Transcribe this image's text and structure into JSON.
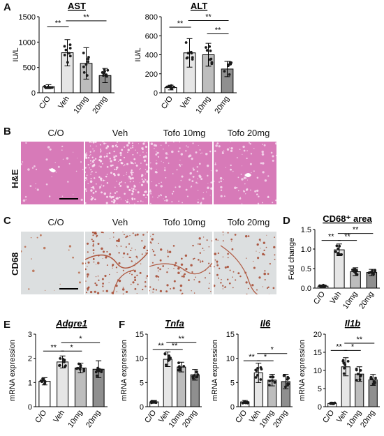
{
  "panels": {
    "A": "A",
    "B": "B",
    "C": "C",
    "D": "D",
    "E": "E",
    "F": "F"
  },
  "micrographs": {
    "col_labels": [
      "C/O",
      "Veh",
      "Tofo 10mg",
      "Tofo 20mg"
    ],
    "he_row_label": "H&E",
    "cd68_row_label": "CD68",
    "he_color": "#d77ab8",
    "cd68_color": "#dcdfe0"
  },
  "colors": {
    "bar_co": "#ffffff",
    "bar_veh": "#e6e6e6",
    "bar_10mg": "#bdbdbd",
    "bar_20mg": "#8f8f8f"
  },
  "chart_data": [
    {
      "id": "ast",
      "type": "bar",
      "title": "AST",
      "title_underline": true,
      "title_italic": false,
      "ylabel": "IU/L",
      "ylim": [
        0,
        1500
      ],
      "yticks": [
        0,
        500,
        1000,
        1500
      ],
      "categories": [
        "C/O",
        "Veh",
        "10mg",
        "20mg"
      ],
      "values": [
        120,
        790,
        580,
        340
      ],
      "errors": [
        40,
        260,
        310,
        140
      ],
      "brackets": [
        {
          "from": 0,
          "to": 1,
          "label": "**",
          "y": 1300
        },
        {
          "from": 1,
          "to": 3,
          "label": "**",
          "y": 1420
        }
      ]
    },
    {
      "id": "alt",
      "type": "bar",
      "title": "ALT",
      "title_underline": true,
      "title_italic": false,
      "ylabel": "IU/L",
      "ylim": [
        0,
        800
      ],
      "yticks": [
        0,
        200,
        400,
        600,
        800
      ],
      "categories": [
        "C/O",
        "Veh",
        "10mg",
        "20mg"
      ],
      "values": [
        55,
        420,
        400,
        250
      ],
      "errors": [
        25,
        150,
        120,
        80
      ],
      "brackets": [
        {
          "from": 0,
          "to": 1,
          "label": "**",
          "y": 690
        },
        {
          "from": 2,
          "to": 3,
          "label": "**",
          "y": 620
        },
        {
          "from": 1,
          "to": 3,
          "label": "**",
          "y": 760
        }
      ]
    },
    {
      "id": "cd68",
      "type": "bar",
      "title": "CD68⁺ area",
      "title_underline": true,
      "title_italic": false,
      "ylabel": "Fold change",
      "ylim": [
        0,
        1.5
      ],
      "yticks": [
        0.0,
        0.5,
        1.0,
        1.5
      ],
      "categories": [
        "C/O",
        "Veh",
        "10mg",
        "20mg"
      ],
      "values": [
        0.05,
        0.98,
        0.42,
        0.4
      ],
      "errors": [
        0.03,
        0.15,
        0.1,
        0.08
      ],
      "brackets": [
        {
          "from": 0,
          "to": 1,
          "label": "**",
          "y": 1.22
        },
        {
          "from": 1,
          "to": 2,
          "label": "**",
          "y": 1.22
        },
        {
          "from": 1,
          "to": 3,
          "label": "**",
          "y": 1.4
        }
      ]
    },
    {
      "id": "adgre1",
      "type": "bar",
      "title": "Adgre1",
      "title_underline": true,
      "title_italic": true,
      "ylabel": "mRNA expression",
      "ylim": [
        0,
        3
      ],
      "yticks": [
        0,
        1,
        2,
        3
      ],
      "categories": [
        "C/O",
        "Veh",
        "10mg",
        "20mg"
      ],
      "values": [
        1.05,
        1.85,
        1.6,
        1.55
      ],
      "errors": [
        0.15,
        0.25,
        0.2,
        0.35
      ],
      "brackets": [
        {
          "from": 0,
          "to": 1,
          "label": "**",
          "y": 2.3
        },
        {
          "from": 1,
          "to": 2,
          "label": "*",
          "y": 2.3
        },
        {
          "from": 1,
          "to": 3,
          "label": "*",
          "y": 2.65
        }
      ]
    },
    {
      "id": "tnfa",
      "type": "bar",
      "title": "Tnfa",
      "title_underline": true,
      "title_italic": true,
      "ylabel": "mRNA expression",
      "ylim": [
        0,
        15
      ],
      "yticks": [
        0,
        5,
        10,
        15
      ],
      "categories": [
        "C/O",
        "Veh",
        "10mg",
        "20mg"
      ],
      "values": [
        1.0,
        9.8,
        8.2,
        6.6
      ],
      "errors": [
        0.3,
        1.5,
        1.0,
        1.1
      ],
      "brackets": [
        {
          "from": 0,
          "to": 1,
          "label": "**",
          "y": 11.8
        },
        {
          "from": 1,
          "to": 2,
          "label": "**",
          "y": 11.8
        },
        {
          "from": 1,
          "to": 3,
          "label": "**",
          "y": 13.3
        }
      ]
    },
    {
      "id": "il6",
      "type": "bar",
      "title": "Il6",
      "title_underline": true,
      "title_italic": true,
      "ylabel": "mRNA expression",
      "ylim": [
        0,
        15
      ],
      "yticks": [
        0,
        5,
        10,
        15
      ],
      "categories": [
        "C/O",
        "Veh",
        "10mg",
        "20mg"
      ],
      "values": [
        1.0,
        7.0,
        5.5,
        5.2
      ],
      "errors": [
        0.3,
        2.0,
        1.2,
        1.5
      ],
      "brackets": [
        {
          "from": 0,
          "to": 1,
          "label": "**",
          "y": 9.5
        },
        {
          "from": 1,
          "to": 2,
          "label": "*",
          "y": 9.5
        },
        {
          "from": 1,
          "to": 3,
          "label": "*",
          "y": 11.0
        }
      ]
    },
    {
      "id": "il1b",
      "type": "bar",
      "title": "Il1b",
      "title_underline": true,
      "title_italic": true,
      "ylabel": "mRNA expression",
      "ylim": [
        0,
        20
      ],
      "yticks": [
        0,
        5,
        10,
        15,
        20
      ],
      "categories": [
        "C/O",
        "Veh",
        "10mg",
        "20mg"
      ],
      "values": [
        0.9,
        11.0,
        9.0,
        7.4
      ],
      "errors": [
        0.3,
        2.5,
        2.0,
        1.5
      ],
      "brackets": [
        {
          "from": 0,
          "to": 1,
          "label": "**",
          "y": 15.5
        },
        {
          "from": 1,
          "to": 2,
          "label": "*",
          "y": 15.5
        },
        {
          "from": 1,
          "to": 3,
          "label": "**",
          "y": 17.5
        }
      ]
    }
  ]
}
